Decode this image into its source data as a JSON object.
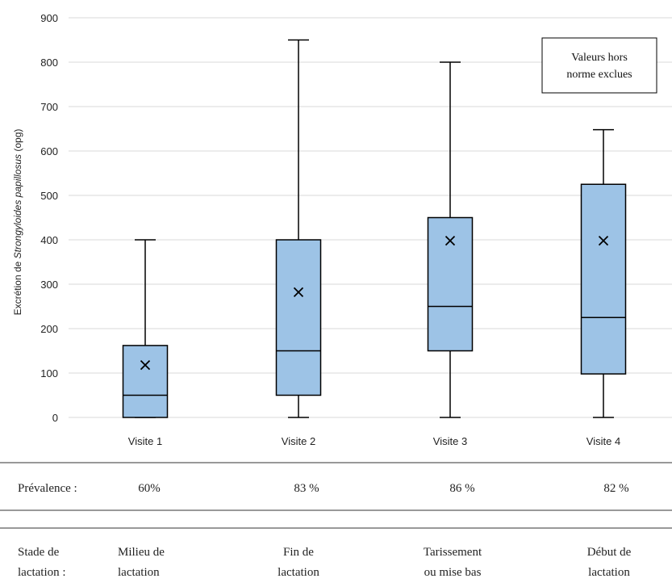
{
  "chart_data": {
    "type": "box",
    "ylabel_prefix": "Excrétion de ",
    "ylabel_italic": "Strongyloides papillosus",
    "ylabel_suffix": " (opg)",
    "ylim": [
      0,
      900
    ],
    "yticks": [
      0,
      100,
      200,
      300,
      400,
      500,
      600,
      700,
      800,
      900
    ],
    "grid": true,
    "categories": [
      "Visite 1",
      "Visite 2",
      "Visite 3",
      "Visite 4"
    ],
    "boxes": [
      {
        "min": 0,
        "q1": 0,
        "median": 50,
        "q3": 162,
        "max": 400,
        "mean": 118
      },
      {
        "min": 0,
        "q1": 50,
        "median": 150,
        "q3": 400,
        "max": 850,
        "mean": 282
      },
      {
        "min": 0,
        "q1": 150,
        "median": 250,
        "q3": 450,
        "max": 800,
        "mean": 398
      },
      {
        "min": 0,
        "q1": 98,
        "median": 225,
        "q3": 525,
        "max": 648,
        "mean": 398
      }
    ],
    "annotation_line1": "Valeurs hors",
    "annotation_line2": "norme exclues",
    "colors": {
      "box_fill": "#9DC3E6",
      "stroke": "#000000",
      "grid": "#D9D9D9"
    }
  },
  "prevalence": {
    "label": "Prévalence :",
    "values": [
      "60%",
      "83 %",
      "86 %",
      "82 %"
    ]
  },
  "stage": {
    "label_line1": "Stade de",
    "label_line2": "lactation :",
    "values": [
      {
        "line1": "Milieu de",
        "line2": "lactation"
      },
      {
        "line1": "Fin de",
        "line2": "lactation"
      },
      {
        "line1": "Tarissement",
        "line2": "ou mise bas"
      },
      {
        "line1": "Début de",
        "line2": "lactation"
      }
    ]
  }
}
